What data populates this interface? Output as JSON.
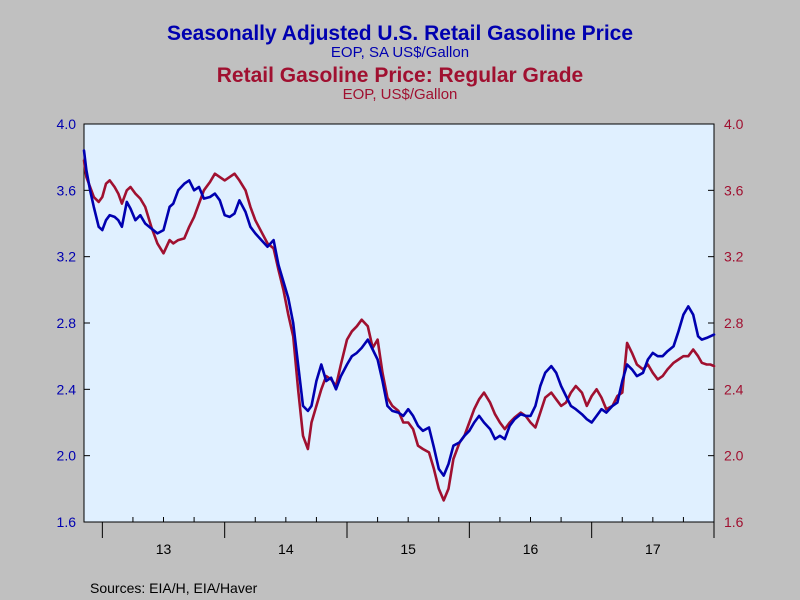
{
  "titles": {
    "series1_title": "Seasonally Adjusted U.S. Retail Gasoline Price",
    "series1_subtitle": "EOP, SA US$/Gallon",
    "series2_title": "Retail Gasoline Price: Regular Grade",
    "series2_subtitle": "EOP, US$/Gallon"
  },
  "source": "Sources:  EIA/H, EIA/Haver",
  "colors": {
    "background": "#c0c0c0",
    "plot_area": "#e0f0ff",
    "series1": "#0000b0",
    "series2": "#a01030",
    "axis": "#000000"
  },
  "chart_data": {
    "type": "line",
    "title": "Seasonally Adjusted U.S. Retail Gasoline Price",
    "x_tick_labels": [
      "13",
      "14",
      "15",
      "16",
      "17"
    ],
    "xlim": [
      2012.85,
      2018.0
    ],
    "ylim": [
      1.6,
      4.0
    ],
    "yticks": [
      1.6,
      2.0,
      2.4,
      2.8,
      3.2,
      3.6,
      4.0
    ],
    "ytick_labels": [
      "1.6",
      "2.0",
      "2.4",
      "2.8",
      "3.2",
      "3.6",
      "4.0"
    ],
    "grid": false,
    "series": [
      {
        "name": "Seasonally Adjusted U.S. Retail Gasoline Price",
        "axis": "left",
        "x": [
          2012.85,
          2012.87,
          2012.9,
          2012.93,
          2012.97,
          2013.0,
          2013.03,
          2013.06,
          2013.1,
          2013.13,
          2013.16,
          2013.2,
          2013.23,
          2013.27,
          2013.31,
          2013.35,
          2013.4,
          2013.45,
          2013.5,
          2013.55,
          2013.58,
          2013.62,
          2013.67,
          2013.71,
          2013.75,
          2013.79,
          2013.83,
          2013.88,
          2013.92,
          2013.96,
          2014.0,
          2014.04,
          2014.08,
          2014.12,
          2014.17,
          2014.21,
          2014.25,
          2014.3,
          2014.35,
          2014.4,
          2014.44,
          2014.48,
          2014.52,
          2014.56,
          2014.6,
          2014.64,
          2014.68,
          2014.71,
          2014.75,
          2014.79,
          2014.83,
          2014.87,
          2014.91,
          2014.95,
          2015.0,
          2015.04,
          2015.08,
          2015.12,
          2015.17,
          2015.21,
          2015.25,
          2015.29,
          2015.33,
          2015.37,
          2015.42,
          2015.46,
          2015.5,
          2015.54,
          2015.58,
          2015.62,
          2015.67,
          2015.71,
          2015.75,
          2015.79,
          2015.83,
          2015.87,
          2015.92,
          2015.96,
          2016.0,
          2016.04,
          2016.08,
          2016.12,
          2016.17,
          2016.21,
          2016.25,
          2016.29,
          2016.33,
          2016.37,
          2016.42,
          2016.46,
          2016.5,
          2016.54,
          2016.58,
          2016.62,
          2016.67,
          2016.71,
          2016.75,
          2016.79,
          2016.83,
          2016.87,
          2016.92,
          2016.96,
          2017.0,
          2017.04,
          2017.08,
          2017.12,
          2017.17,
          2017.21,
          2017.25,
          2017.29,
          2017.33,
          2017.37,
          2017.42,
          2017.46,
          2017.5,
          2017.54,
          2017.58,
          2017.62,
          2017.67,
          2017.71,
          2017.75,
          2017.79,
          2017.83,
          2017.87,
          2017.9,
          2017.94,
          2017.97,
          2018.0
        ],
        "values": [
          3.84,
          3.72,
          3.6,
          3.5,
          3.38,
          3.36,
          3.42,
          3.45,
          3.44,
          3.42,
          3.38,
          3.53,
          3.49,
          3.42,
          3.45,
          3.4,
          3.37,
          3.34,
          3.36,
          3.5,
          3.52,
          3.6,
          3.64,
          3.66,
          3.6,
          3.62,
          3.55,
          3.56,
          3.58,
          3.54,
          3.45,
          3.44,
          3.46,
          3.54,
          3.47,
          3.38,
          3.34,
          3.3,
          3.26,
          3.3,
          3.15,
          3.05,
          2.95,
          2.8,
          2.55,
          2.3,
          2.27,
          2.3,
          2.45,
          2.55,
          2.45,
          2.47,
          2.4,
          2.48,
          2.55,
          2.6,
          2.62,
          2.65,
          2.7,
          2.64,
          2.58,
          2.45,
          2.3,
          2.27,
          2.26,
          2.24,
          2.28,
          2.24,
          2.18,
          2.15,
          2.17,
          2.05,
          1.92,
          1.88,
          1.95,
          2.06,
          2.08,
          2.12,
          2.15,
          2.2,
          2.24,
          2.2,
          2.16,
          2.1,
          2.12,
          2.1,
          2.18,
          2.22,
          2.25,
          2.24,
          2.24,
          2.3,
          2.42,
          2.5,
          2.54,
          2.5,
          2.42,
          2.36,
          2.3,
          2.28,
          2.25,
          2.22,
          2.2,
          2.24,
          2.28,
          2.26,
          2.3,
          2.32,
          2.45,
          2.55,
          2.52,
          2.48,
          2.5,
          2.58,
          2.62,
          2.6,
          2.6,
          2.63,
          2.66,
          2.75,
          2.85,
          2.9,
          2.85,
          2.72,
          2.7,
          2.71,
          2.72,
          2.73
        ]
      },
      {
        "name": "Retail Gasoline Price: Regular Grade",
        "axis": "right",
        "x": [
          2012.85,
          2012.87,
          2012.9,
          2012.93,
          2012.97,
          2013.0,
          2013.03,
          2013.06,
          2013.1,
          2013.13,
          2013.16,
          2013.2,
          2013.23,
          2013.27,
          2013.31,
          2013.35,
          2013.4,
          2013.45,
          2013.5,
          2013.55,
          2013.58,
          2013.62,
          2013.67,
          2013.71,
          2013.75,
          2013.79,
          2013.83,
          2013.88,
          2013.92,
          2013.96,
          2014.0,
          2014.04,
          2014.08,
          2014.12,
          2014.17,
          2014.21,
          2014.25,
          2014.3,
          2014.35,
          2014.4,
          2014.44,
          2014.48,
          2014.52,
          2014.56,
          2014.6,
          2014.64,
          2014.68,
          2014.71,
          2014.75,
          2014.79,
          2014.83,
          2014.87,
          2014.91,
          2014.95,
          2015.0,
          2015.04,
          2015.08,
          2015.12,
          2015.17,
          2015.21,
          2015.25,
          2015.29,
          2015.33,
          2015.37,
          2015.42,
          2015.46,
          2015.5,
          2015.54,
          2015.58,
          2015.62,
          2015.67,
          2015.71,
          2015.75,
          2015.79,
          2015.83,
          2015.87,
          2015.92,
          2015.96,
          2016.0,
          2016.04,
          2016.08,
          2016.12,
          2016.17,
          2016.21,
          2016.25,
          2016.29,
          2016.33,
          2016.37,
          2016.42,
          2016.46,
          2016.5,
          2016.54,
          2016.58,
          2016.62,
          2016.67,
          2016.71,
          2016.75,
          2016.79,
          2016.83,
          2016.87,
          2016.92,
          2016.96,
          2017.0,
          2017.04,
          2017.08,
          2017.12,
          2017.17,
          2017.21,
          2017.25,
          2017.29,
          2017.33,
          2017.37,
          2017.42,
          2017.46,
          2017.5,
          2017.54,
          2017.58,
          2017.62,
          2017.67,
          2017.71,
          2017.75,
          2017.79,
          2017.83,
          2017.87,
          2017.9,
          2017.94,
          2017.97,
          2018.0
        ],
        "values": [
          3.78,
          3.68,
          3.62,
          3.56,
          3.53,
          3.56,
          3.64,
          3.66,
          3.62,
          3.58,
          3.52,
          3.6,
          3.62,
          3.58,
          3.55,
          3.5,
          3.38,
          3.28,
          3.22,
          3.3,
          3.28,
          3.3,
          3.31,
          3.38,
          3.44,
          3.52,
          3.6,
          3.65,
          3.7,
          3.68,
          3.66,
          3.68,
          3.7,
          3.66,
          3.6,
          3.5,
          3.42,
          3.35,
          3.28,
          3.25,
          3.12,
          3.0,
          2.85,
          2.72,
          2.4,
          2.12,
          2.04,
          2.2,
          2.3,
          2.4,
          2.48,
          2.46,
          2.42,
          2.55,
          2.7,
          2.75,
          2.78,
          2.82,
          2.78,
          2.65,
          2.7,
          2.5,
          2.35,
          2.3,
          2.27,
          2.2,
          2.2,
          2.16,
          2.06,
          2.04,
          2.02,
          1.92,
          1.8,
          1.73,
          1.8,
          1.98,
          2.08,
          2.12,
          2.2,
          2.28,
          2.34,
          2.38,
          2.32,
          2.25,
          2.2,
          2.16,
          2.2,
          2.23,
          2.26,
          2.24,
          2.2,
          2.17,
          2.26,
          2.35,
          2.38,
          2.34,
          2.3,
          2.32,
          2.38,
          2.42,
          2.38,
          2.3,
          2.36,
          2.4,
          2.35,
          2.28,
          2.3,
          2.36,
          2.38,
          2.68,
          2.62,
          2.55,
          2.52,
          2.55,
          2.5,
          2.46,
          2.48,
          2.52,
          2.56,
          2.58,
          2.6,
          2.6,
          2.64,
          2.6,
          2.56,
          2.55,
          2.55,
          2.54
        ]
      }
    ]
  }
}
